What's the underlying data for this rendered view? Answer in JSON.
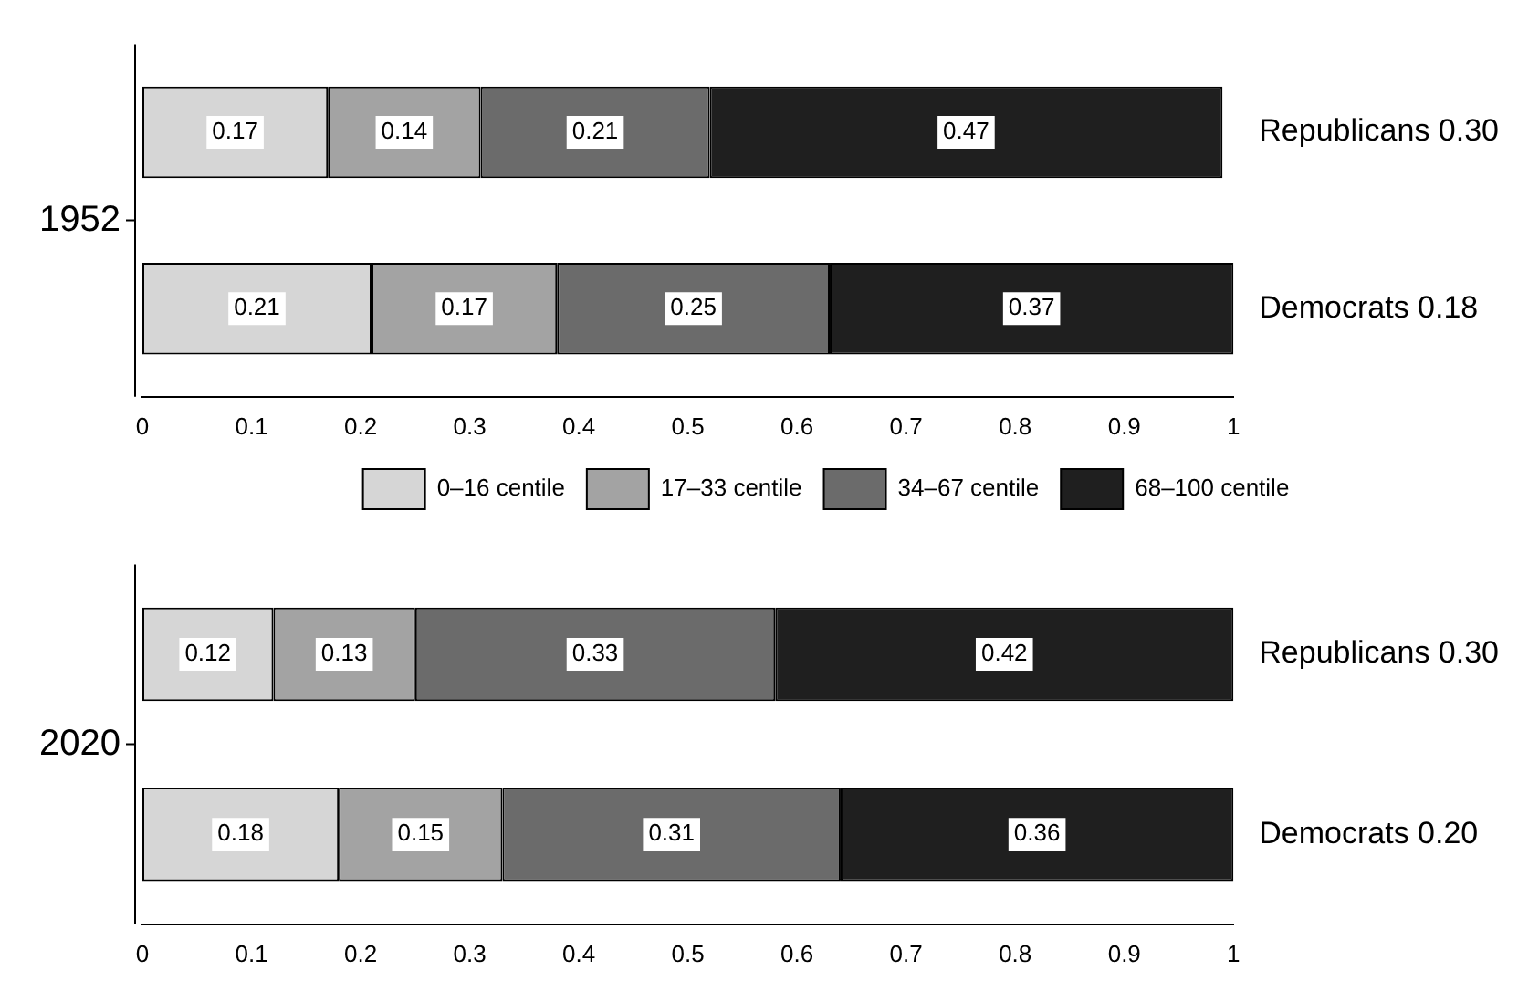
{
  "chart_data": [
    {
      "type": "bar",
      "orientation": "horizontal",
      "stacked": true,
      "ylabel": "1952",
      "categories": [
        "Republicans 0.30",
        "Democrats 0.18"
      ],
      "series": [
        {
          "name": "0–16 centile",
          "color": "#d6d6d6",
          "values": [
            0.17,
            0.21
          ]
        },
        {
          "name": "17–33 centile",
          "color": "#a3a3a3",
          "values": [
            0.14,
            0.17
          ]
        },
        {
          "name": "34–67 centile",
          "color": "#6b6b6b",
          "values": [
            0.21,
            0.25
          ]
        },
        {
          "name": "68–100 centile",
          "color": "#1f1f1f",
          "values": [
            0.47,
            0.37
          ]
        }
      ],
      "xlim": [
        0,
        1
      ],
      "xticks": [
        0,
        0.1,
        0.2,
        0.3,
        0.4,
        0.5,
        0.6,
        0.7,
        0.8,
        0.9,
        1
      ],
      "data_labels": true,
      "grid": false,
      "legend": "bottom"
    },
    {
      "type": "bar",
      "orientation": "horizontal",
      "stacked": true,
      "ylabel": "2020",
      "categories": [
        "Republicans 0.30",
        "Democrats 0.20"
      ],
      "series": [
        {
          "color": "#d6d6d6",
          "values": [
            0.12,
            0.18
          ]
        },
        {
          "color": "#a3a3a3",
          "values": [
            0.13,
            0.15
          ]
        },
        {
          "color": "#6b6b6b",
          "values": [
            0.33,
            0.31
          ]
        },
        {
          "color": "#1f1f1f",
          "values": [
            0.42,
            0.36
          ]
        }
      ],
      "xlim": [
        0,
        1
      ],
      "xticks": [
        0,
        0.1,
        0.2,
        0.3,
        0.4,
        0.5,
        0.6,
        0.7,
        0.8,
        0.9,
        1
      ],
      "data_labels": true,
      "grid": false,
      "legend": false
    }
  ]
}
